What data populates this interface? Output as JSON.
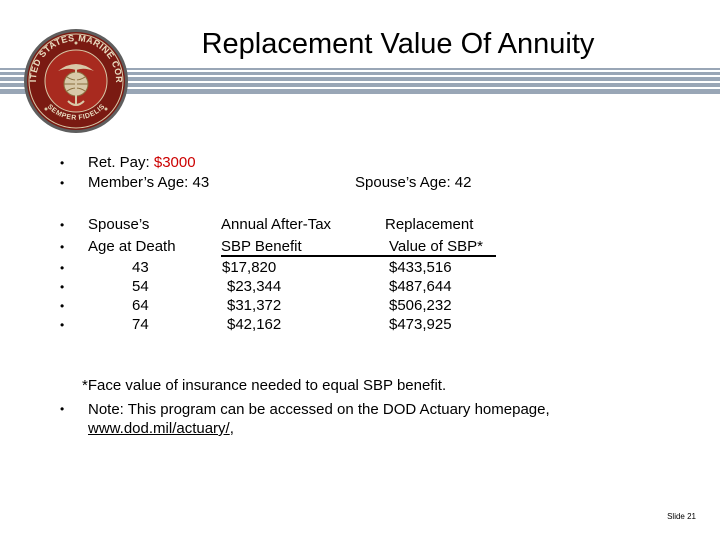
{
  "slide": {
    "title": "Replacement Value Of Annuity",
    "seal": {
      "top_text": "UNITED STATES MARINE CORPS",
      "bottom_text": "SEMPER FIDELIS"
    },
    "bullet_char": "•",
    "ret_pay_label": "Ret. Pay: ",
    "ret_pay_value": "$3000",
    "member_age": "Member’s Age:  43",
    "spouse_age": "Spouse’s Age:  42",
    "table": {
      "col1_header": [
        "Spouse’s",
        "Age at Death"
      ],
      "col2_header": [
        "Annual After-Tax",
        "SBP Benefit"
      ],
      "col3_header": [
        "Replacement",
        "Value of SBP*"
      ],
      "rows": [
        {
          "age": "43",
          "benefit": "$17,820",
          "value": "$433,516"
        },
        {
          "age": "54",
          "benefit": "$23,344",
          "value": "$487,644"
        },
        {
          "age": "64",
          "benefit": "$31,372",
          "value": "$506,232"
        },
        {
          "age": "74",
          "benefit": "$42,162",
          "value": "$473,925"
        }
      ]
    },
    "footnote": "*Face value of insurance needed to equal SBP benefit.",
    "note_line1": "Note:  This program can be accessed on the DOD Actuary homepage,",
    "note_link": "www.dod.mil/actuary/",
    "note_link_suffix": ",",
    "slide_number": "Slide 21",
    "colors": {
      "stripe": "#99a6b6",
      "seal_outer": "#7a1a12",
      "seal_inner": "#a82a1f",
      "highlight": "#cc0000"
    }
  }
}
